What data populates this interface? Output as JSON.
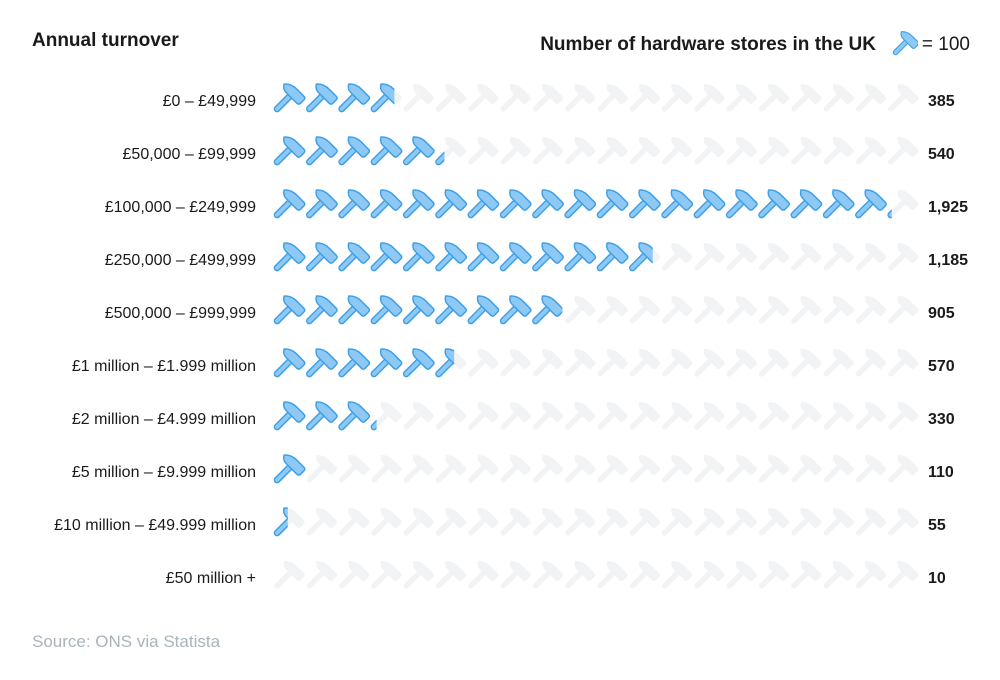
{
  "header": {
    "left_title": "Annual turnover",
    "right_title": "Number of hardware stores in the UK",
    "legend_value": "= 100",
    "legend_icon": "hammer-icon"
  },
  "source": "Source: ONS via Statista",
  "colors": {
    "icon_fill": "#8ec9f5",
    "icon_outline": "#3d9fe6",
    "icon_empty": "#f2f3f5",
    "text": "#1a1a1a",
    "muted": "#a9b4bd"
  },
  "chart_data": {
    "type": "pictograph",
    "unit_value": 100,
    "icon": "hammer-icon",
    "icons_per_row": 20,
    "categories": [
      "£0 – £49,999",
      "£50,000 – £99,999",
      "£100,000 – £249,999",
      "£250,000 – £499,999",
      "£500,000 – £999,999",
      "£1 million – £1.999 million",
      "£2 million – £4.999 million",
      "£5 million – £9.999 million",
      "£10 million – £49.999 million",
      "£50 million +"
    ],
    "values": [
      385,
      540,
      1925,
      1185,
      905,
      570,
      330,
      110,
      55,
      10
    ],
    "value_labels": [
      "385",
      "540",
      "1,925",
      "1,185",
      "905",
      "570",
      "330",
      "110",
      "55",
      "10"
    ]
  }
}
